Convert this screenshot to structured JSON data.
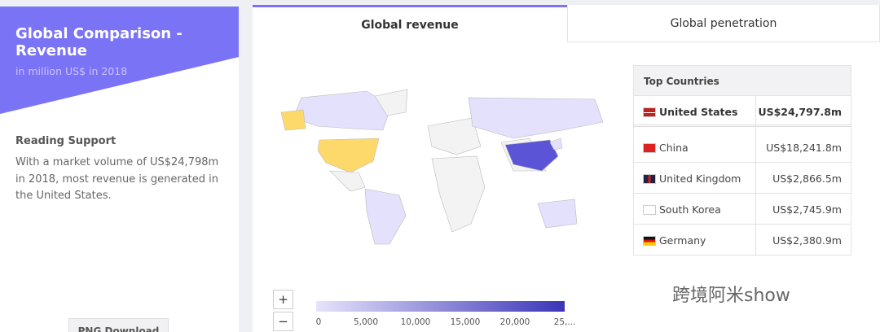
{
  "sidebar": {
    "title": "Global Comparison - Revenue",
    "subtitle": "in million US$ in 2018",
    "section_title": "Reading Support",
    "text": "With a market volume of US$24,798m in 2018, most revenue is generated in the United States.",
    "button": "PNG Download"
  },
  "tabs": [
    "Global revenue",
    "Global penetration"
  ],
  "table": {
    "header": "Top Countries",
    "rows": [
      [
        "United States",
        "US$24,797.8m"
      ],
      [
        "China",
        "US$18,241.8m"
      ],
      [
        "United Kingdom",
        "US$2,866.5m"
      ],
      [
        "South Korea",
        "US$2,745.9m"
      ],
      [
        "Germany",
        "US$2,380.9m"
      ]
    ]
  },
  "zoom": [
    "+",
    "−"
  ],
  "legend": [
    "0",
    "5,000",
    "10,000",
    "15,000",
    "20,000",
    "25,..."
  ],
  "watermark": "跨境阿米show"
}
